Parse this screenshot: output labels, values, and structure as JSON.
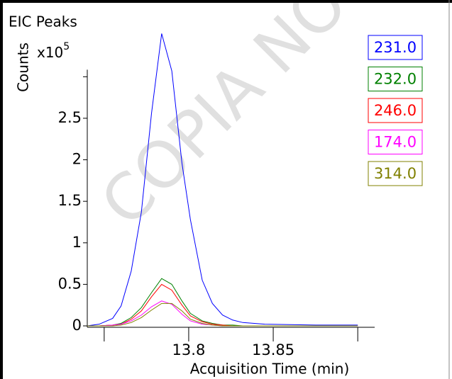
{
  "watermark": "COPIA NO",
  "chart_data": {
    "type": "line",
    "title": "EIC Peaks",
    "y_label": "Counts",
    "y_unit": "x10",
    "y_unit_exponent": "5",
    "x_label": "Acquisition Time (min)",
    "x": [
      13.74,
      13.747,
      13.755,
      13.76,
      13.766,
      13.772,
      13.778,
      13.784,
      13.79,
      13.796,
      13.801,
      13.808,
      13.814,
      13.82,
      13.826,
      13.832,
      13.845,
      13.875,
      13.9
    ],
    "series": [
      {
        "name": "231.0",
        "color": "#0000ff",
        "values": [
          0,
          0.02,
          0.09,
          0.24,
          0.66,
          1.37,
          2.56,
          3.52,
          3.07,
          1.96,
          1.28,
          0.55,
          0.27,
          0.13,
          0.07,
          0.04,
          0.02,
          0.01,
          0.01
        ]
      },
      {
        "name": "232.0",
        "color": "#008000",
        "values": [
          0,
          0,
          0.01,
          0.03,
          0.1,
          0.22,
          0.4,
          0.57,
          0.5,
          0.3,
          0.15,
          0.06,
          0.03,
          0.01,
          0.01,
          0,
          0,
          0,
          0
        ]
      },
      {
        "name": "246.0",
        "color": "#ff0000",
        "values": [
          0,
          0,
          0.01,
          0.02,
          0.08,
          0.18,
          0.35,
          0.5,
          0.43,
          0.25,
          0.12,
          0.05,
          0.02,
          0.01,
          0,
          0,
          0,
          0,
          0
        ]
      },
      {
        "name": "174.0",
        "color": "#ff00ff",
        "values": [
          0,
          0,
          0.01,
          0.02,
          0.06,
          0.13,
          0.23,
          0.3,
          0.26,
          0.14,
          0.06,
          0.02,
          0.01,
          0,
          0,
          0,
          0,
          0,
          0
        ]
      },
      {
        "name": "314.0",
        "color": "#808000",
        "values": [
          0,
          0,
          0,
          0.01,
          0.04,
          0.1,
          0.19,
          0.27,
          0.27,
          0.18,
          0.08,
          0.03,
          0.01,
          0,
          0,
          0,
          0,
          0,
          0
        ]
      }
    ],
    "xlim": [
      13.74,
      13.91
    ],
    "ylim": [
      0,
      3.6
    ],
    "xticks": [
      {
        "value": 13.75,
        "label": null
      },
      13.8,
      13.85,
      {
        "value": 13.9,
        "label": null
      }
    ],
    "yticks": [
      0,
      0.5,
      1,
      1.5,
      2,
      2.5,
      {
        "value": 3,
        "label": null
      }
    ],
    "grid": false,
    "legend": "top-right"
  }
}
